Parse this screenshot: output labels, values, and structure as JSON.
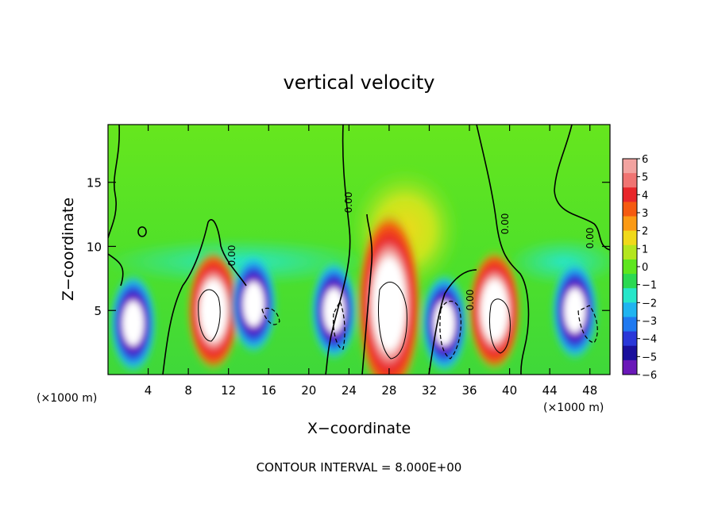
{
  "chart_data": {
    "type": "heatmap",
    "title": "vertical velocity",
    "xlabel": "X−coordinate",
    "ylabel": "Z−coordinate",
    "x_unit": "(×1000 m)",
    "y_unit": "(×1000 m)",
    "xlim": [
      0,
      50
    ],
    "ylim": [
      0,
      19.5
    ],
    "xticks": [
      4,
      8,
      12,
      16,
      20,
      24,
      28,
      32,
      36,
      40,
      44,
      48
    ],
    "yticks": [
      5,
      10,
      15
    ],
    "footer": "CONTOUR INTERVAL = 8.000E+00",
    "colorbar": {
      "range": [
        -6,
        6
      ],
      "labels": [
        "6",
        "5",
        "4",
        "3",
        "2",
        "1",
        "0",
        "−1",
        "−2",
        "−3",
        "−4",
        "−5",
        "−6"
      ],
      "colors": [
        "#f2a3a0",
        "#f07472",
        "#e8262a",
        "#f55a10",
        "#fb9a14",
        "#f0d91a",
        "#b4e61e",
        "#5ee61e",
        "#2bd952",
        "#27e6c9",
        "#1fb4f0",
        "#1f79f0",
        "#2a37d8",
        "#1a0f9c",
        "#6a18b8"
      ]
    },
    "contour_label": "0.00",
    "features": [
      {
        "kind": "updraft",
        "x": 10.5,
        "z": 5.0,
        "peak": "> 6"
      },
      {
        "kind": "updraft",
        "x": 28.0,
        "z": 5.5,
        "peak": "> 6"
      },
      {
        "kind": "updraft",
        "x": 38.5,
        "z": 5.0,
        "peak": "> 6"
      },
      {
        "kind": "downdraft",
        "x": 2.5,
        "z": 4.0,
        "peak": "< -6"
      },
      {
        "kind": "downdraft",
        "x": 14.5,
        "z": 5.5,
        "peak": "< -6"
      },
      {
        "kind": "downdraft",
        "x": 22.5,
        "z": 5.0,
        "peak": "< -6"
      },
      {
        "kind": "downdraft",
        "x": 33.5,
        "z": 4.0,
        "peak": "< -6"
      },
      {
        "kind": "downdraft",
        "x": 46.5,
        "z": 5.0,
        "peak": "< -6"
      }
    ]
  }
}
